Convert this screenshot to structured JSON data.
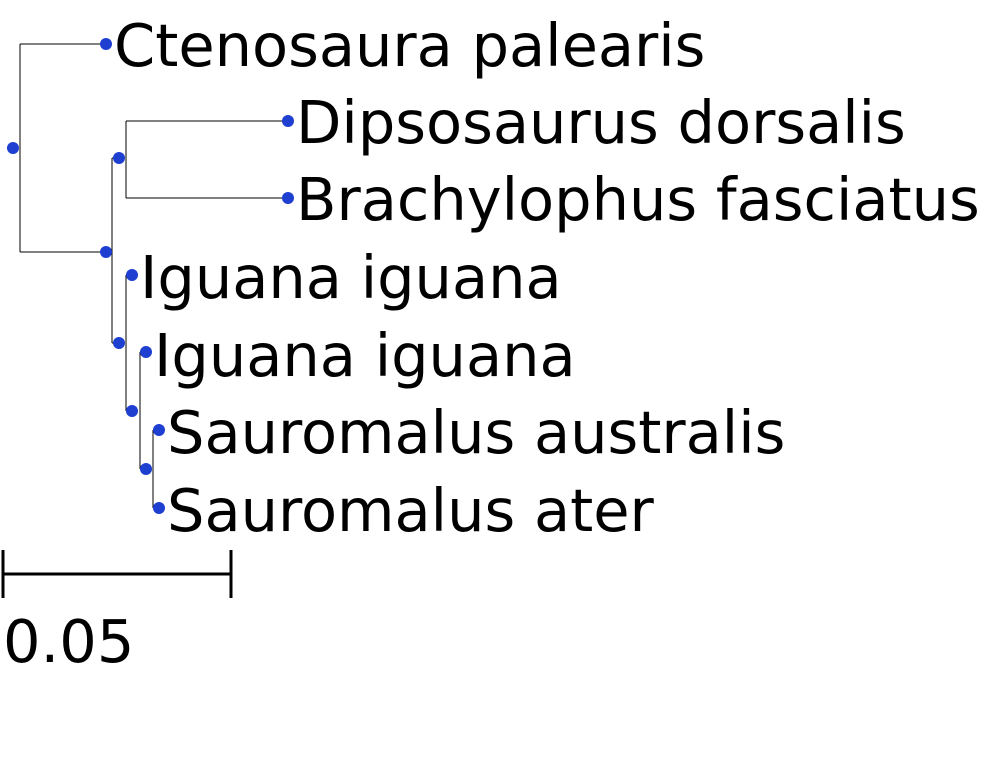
{
  "colors": {
    "node": "#1f3fd0",
    "branch": "#000000",
    "text": "#000000"
  },
  "tree": {
    "leaves": [
      {
        "id": "ctenosaura",
        "label": "Ctenosaura palearis"
      },
      {
        "id": "dipsosaurus",
        "label": "Dipsosaurus dorsalis"
      },
      {
        "id": "brachylophus",
        "label": "Brachylophus fasciatus"
      },
      {
        "id": "iguana1",
        "label": "Iguana iguana"
      },
      {
        "id": "iguana2",
        "label": "Iguana iguana"
      },
      {
        "id": "sauro_australis",
        "label": "Sauromalus australis"
      },
      {
        "id": "sauro_ater",
        "label": "Sauromalus ater"
      }
    ]
  },
  "scale_bar": {
    "label": "0.05",
    "length": 0.05
  }
}
